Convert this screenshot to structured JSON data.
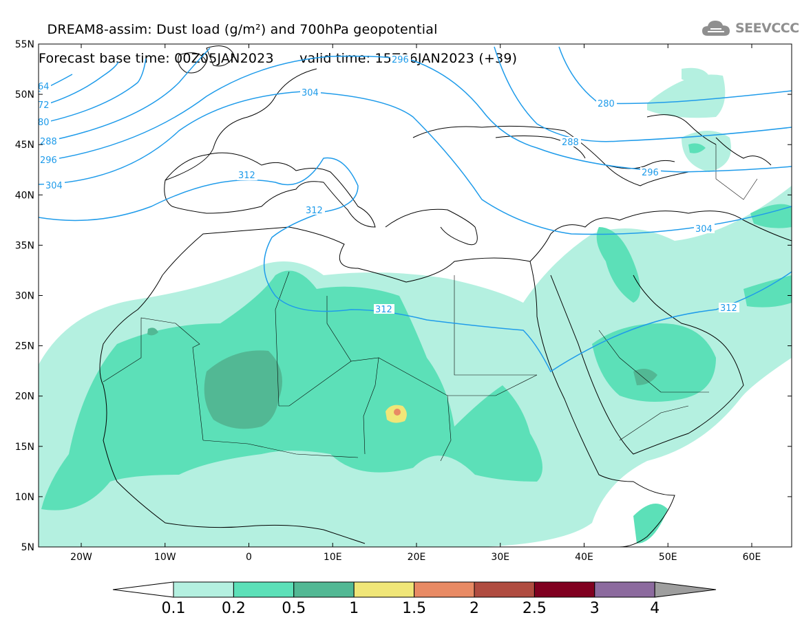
{
  "header": {
    "title_line1": "DREAM8-assim: Dust load (g/m²) and 700hPa geopotential",
    "title_line2": "Forecast base time: 00Z05JAN2023      valid time: 15Z06JAN2023 (+39)"
  },
  "logo": {
    "text": "SEEVCCC",
    "icon": "cloud-icon"
  },
  "map": {
    "lat_ticks": [
      "55N",
      "50N",
      "45N",
      "40N",
      "35N",
      "30N",
      "25N",
      "20N",
      "15N",
      "10N",
      "5N"
    ],
    "lon_ticks": [
      "20W",
      "10W",
      "0",
      "10E",
      "20E",
      "30E",
      "40E",
      "50E",
      "60E"
    ],
    "contour_labels": [
      "64",
      "72",
      "80",
      "288",
      "296",
      "304",
      "312",
      "296",
      "304",
      "312",
      "280",
      "288",
      "296",
      "304",
      "312",
      "312"
    ],
    "contour_color": "#1e9bea"
  },
  "colorbar": {
    "labels": [
      "0.1",
      "0.2",
      "0.5",
      "1",
      "1.5",
      "2",
      "2.5",
      "3",
      "4"
    ],
    "colors": [
      "#b4f0e0",
      "#5ce0b8",
      "#52b894",
      "#f0e678",
      "#e88a64",
      "#b04c40",
      "#800020",
      "#8c6a9e",
      "#9e9e9e"
    ]
  }
}
